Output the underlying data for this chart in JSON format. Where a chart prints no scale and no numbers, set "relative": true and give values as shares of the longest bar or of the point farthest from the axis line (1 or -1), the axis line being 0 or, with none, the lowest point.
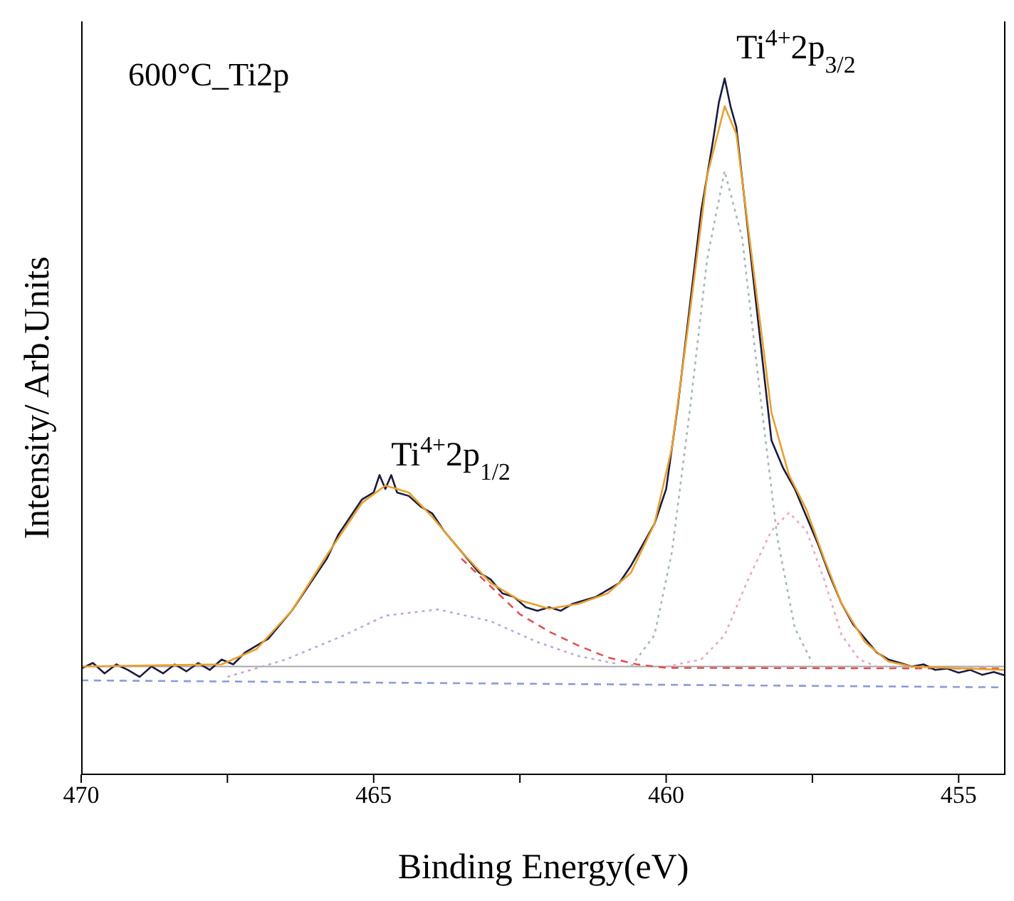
{
  "chart_data": {
    "type": "line",
    "title": "600°C_Ti2p",
    "xlabel": "Binding Energy(eV)",
    "ylabel": "Intensity/ Arb.Units",
    "relative": true,
    "xlim": [
      470,
      454.2
    ],
    "xticks": [
      470,
      {
        "value": 467.5,
        "label": null
      },
      465,
      {
        "value": 462.5,
        "label": null
      },
      460,
      {
        "value": 457.5,
        "label": null
      },
      455
    ],
    "annotations": [
      {
        "text": "Ti$^{4+}$2p$_{3/2}$",
        "x": 458.9,
        "y": 1.0
      },
      {
        "text": "Ti$^{4+}$2p$_{1/2}$",
        "x": 464.8,
        "y": 0.415
      }
    ],
    "ref_lines": [
      {
        "axis": "y",
        "value": 0.155,
        "color": "#a8a8a8",
        "line_style": "solid"
      }
    ],
    "series": [
      {
        "color": "#8a9cd8",
        "line_style": "dashed",
        "x": [
          470,
          454.2
        ],
        "values": [
          0.135,
          0.125
        ]
      },
      {
        "color": "#e05050",
        "line_style": "dashed",
        "x": [
          463.5,
          463,
          462.5,
          462,
          461.5,
          461,
          460.5,
          460,
          454.2
        ],
        "values": [
          0.31,
          0.27,
          0.23,
          0.205,
          0.185,
          0.168,
          0.158,
          0.153,
          0.152
        ]
      },
      {
        "color": "#c0a8d8",
        "line_style": "dotted",
        "x": [
          467.5,
          466.5,
          465.5,
          464.8,
          463.9,
          463,
          462.2,
          461.5,
          460.8
        ],
        "values": [
          0.14,
          0.165,
          0.2,
          0.228,
          0.237,
          0.22,
          0.19,
          0.17,
          0.158
        ]
      },
      {
        "color": "#a8b8b8",
        "line_style": "dotted",
        "x": [
          460.6,
          460.2,
          459.9,
          459.6,
          459.3,
          459,
          458.7,
          458.4,
          458.1,
          457.8,
          457.5
        ],
        "values": [
          0.155,
          0.2,
          0.32,
          0.52,
          0.74,
          0.867,
          0.77,
          0.55,
          0.34,
          0.21,
          0.16
        ]
      },
      {
        "color": "#e8a8c8",
        "line_style": "dotted",
        "x": [
          460,
          459.4,
          459,
          458.6,
          458.2,
          457.9,
          457.6,
          457.3,
          457,
          456.7,
          456.4
        ],
        "values": [
          0.155,
          0.165,
          0.2,
          0.28,
          0.35,
          0.376,
          0.35,
          0.28,
          0.2,
          0.165,
          0.155
        ]
      },
      {
        "color": "#1c1c40",
        "line_style": "solid",
        "x": [
          470,
          469.8,
          469.6,
          469.4,
          469.2,
          469,
          468.8,
          468.6,
          468.4,
          468.2,
          468,
          467.8,
          467.6,
          467.4,
          467.2,
          467,
          466.8,
          466.6,
          466.4,
          466.2,
          466,
          465.8,
          465.6,
          465.4,
          465.2,
          465,
          464.9,
          464.8,
          464.7,
          464.6,
          464.4,
          464.2,
          464,
          463.8,
          463.6,
          463.4,
          463.2,
          463,
          462.8,
          462.6,
          462.4,
          462.2,
          462,
          461.8,
          461.6,
          461.4,
          461.2,
          461,
          460.8,
          460.6,
          460.4,
          460.2,
          460,
          459.8,
          459.6,
          459.4,
          459.2,
          459.1,
          459,
          458.9,
          458.8,
          458.6,
          458.4,
          458.2,
          458,
          457.8,
          457.6,
          457.4,
          457.2,
          457,
          456.8,
          456.6,
          456.4,
          456.2,
          456,
          455.8,
          455.6,
          455.4,
          455.2,
          455,
          454.8,
          454.6,
          454.4,
          454.2
        ],
        "values": [
          0.152,
          0.16,
          0.145,
          0.158,
          0.15,
          0.14,
          0.155,
          0.145,
          0.158,
          0.148,
          0.16,
          0.15,
          0.165,
          0.158,
          0.175,
          0.185,
          0.195,
          0.215,
          0.235,
          0.26,
          0.285,
          0.31,
          0.345,
          0.37,
          0.395,
          0.405,
          0.43,
          0.41,
          0.43,
          0.405,
          0.4,
          0.385,
          0.375,
          0.35,
          0.33,
          0.31,
          0.29,
          0.28,
          0.26,
          0.255,
          0.24,
          0.235,
          0.24,
          0.235,
          0.245,
          0.25,
          0.255,
          0.265,
          0.275,
          0.3,
          0.33,
          0.36,
          0.41,
          0.53,
          0.67,
          0.81,
          0.91,
          0.965,
          1.0,
          0.96,
          0.93,
          0.78,
          0.63,
          0.48,
          0.44,
          0.41,
          0.37,
          0.33,
          0.285,
          0.245,
          0.215,
          0.195,
          0.175,
          0.165,
          0.16,
          0.155,
          0.158,
          0.15,
          0.152,
          0.146,
          0.15,
          0.143,
          0.147,
          0.142
        ]
      },
      {
        "color": "#e8a030",
        "line_style": "solid",
        "x": [
          470,
          467.6,
          467,
          466.4,
          465.8,
          465.2,
          464.8,
          464.4,
          464,
          463.5,
          463,
          462.5,
          462,
          461.5,
          461,
          460.6,
          460.2,
          459.9,
          459.6,
          459.3,
          459,
          458.8,
          458.5,
          458.2,
          457.9,
          457.6,
          457.3,
          457,
          456.6,
          456.2,
          455.8,
          454.2
        ],
        "values": [
          0.155,
          0.158,
          0.18,
          0.235,
          0.315,
          0.39,
          0.415,
          0.405,
          0.37,
          0.32,
          0.275,
          0.25,
          0.238,
          0.245,
          0.26,
          0.29,
          0.36,
          0.47,
          0.66,
          0.86,
          0.96,
          0.92,
          0.72,
          0.52,
          0.43,
          0.38,
          0.31,
          0.245,
          0.19,
          0.162,
          0.155,
          0.15
        ]
      }
    ]
  }
}
